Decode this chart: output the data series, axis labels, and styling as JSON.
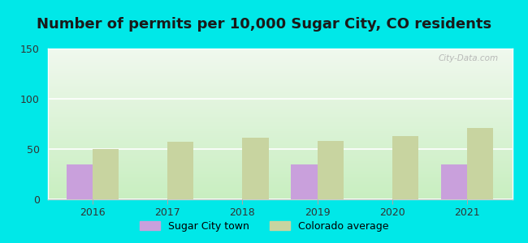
{
  "title": "Number of permits per 10,000 Sugar City, CO residents",
  "years": [
    2016,
    2017,
    2018,
    2019,
    2020,
    2021
  ],
  "sugar_city_values": [
    35,
    0,
    0,
    35,
    0,
    35
  ],
  "colorado_values": [
    50,
    57,
    61,
    58,
    63,
    71
  ],
  "sugar_city_color": "#c9a0dc",
  "colorado_color": "#c8d4a0",
  "ylim": [
    0,
    150
  ],
  "yticks": [
    0,
    50,
    100,
    150
  ],
  "background_outer": "#00e8e8",
  "background_plot_top": "#f0f8ee",
  "background_plot_bottom": "#c8eec0",
  "bar_width": 0.35,
  "title_fontsize": 13,
  "legend_label_sugar": "Sugar City town",
  "legend_label_colorado": "Colorado average",
  "watermark": "City-Data.com"
}
